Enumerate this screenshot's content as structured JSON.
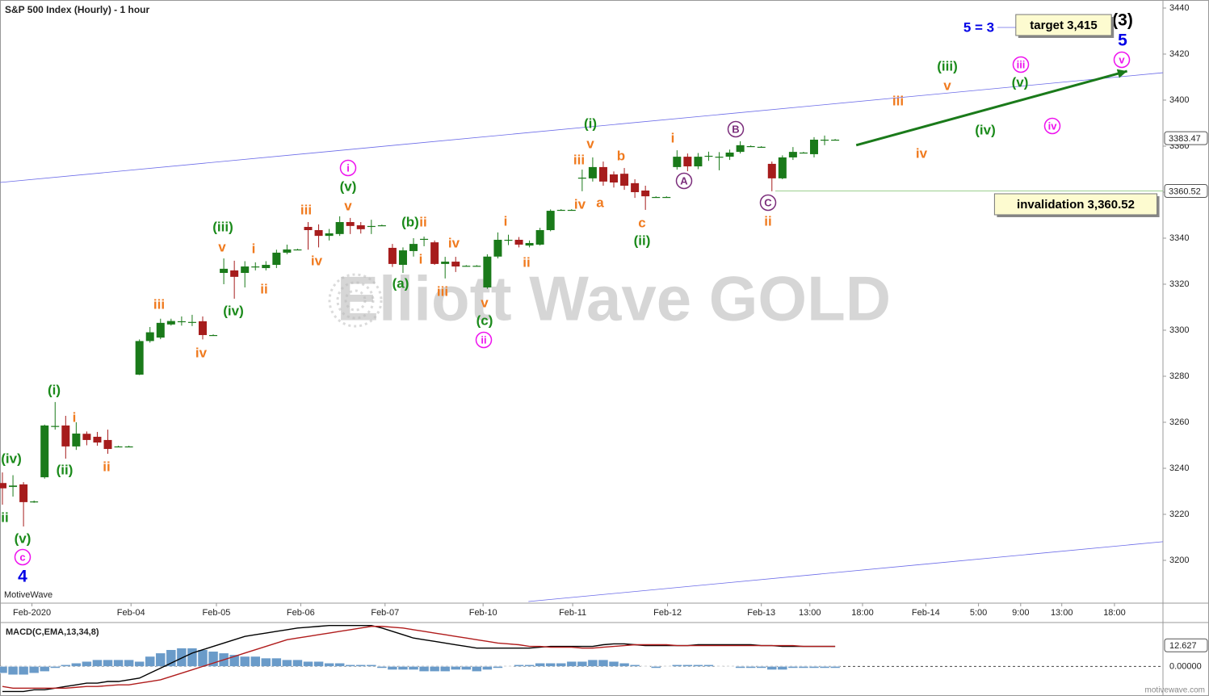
{
  "chart_data": [
    {
      "type": "candlestick",
      "title": "S&P 500 Index (Hourly) - 1 hour",
      "watermark": "Elliott Wave GOLD",
      "brand": "MotiveWave",
      "footer": "motivewave.com",
      "up_color": "#1a7a1a",
      "down_color": "#a61c1c",
      "xlim": [
        -0.23,
        110.1
      ],
      "ylim": [
        3181.4,
        3443.5
      ],
      "xticks": [
        {
          "value": 2.8,
          "label": "Feb-2020"
        },
        {
          "value": 12.2,
          "label": "Feb-04"
        },
        {
          "value": 20.3,
          "label": "Feb-05"
        },
        {
          "value": 28.3,
          "label": "Feb-06"
        },
        {
          "value": 36.3,
          "label": "Feb-07"
        },
        {
          "value": 45.6,
          "label": "Feb-10"
        },
        {
          "value": 54.1,
          "label": "Feb-11"
        },
        {
          "value": 63.1,
          "label": "Feb-12"
        },
        {
          "value": 72,
          "label": "Feb-13"
        },
        {
          "value": 76.6,
          "label": "13:00"
        },
        {
          "value": 81.6,
          "label": "18:00"
        },
        {
          "value": 87.6,
          "label": "Feb-14"
        },
        {
          "value": 92.6,
          "label": "5:00"
        },
        {
          "value": 96.6,
          "label": "9:00"
        },
        {
          "value": 100.5,
          "label": "13:00"
        },
        {
          "value": 105.5,
          "label": "18:00"
        }
      ],
      "yticks": [
        3200,
        3220,
        3240,
        3260,
        3280,
        3300,
        3320,
        3340,
        3360,
        3380,
        3400,
        3420,
        3440
      ],
      "price_markers": [
        3383.47,
        3360.52
      ],
      "x": [
        0,
        1,
        2,
        3,
        4,
        5,
        6,
        7,
        8,
        9,
        10,
        11,
        12,
        13,
        14,
        15,
        16,
        17,
        18,
        19,
        20,
        21,
        22,
        23,
        24,
        25,
        26,
        27,
        28,
        29,
        30,
        31,
        32,
        33,
        34,
        35,
        36,
        37,
        38,
        39,
        40,
        41,
        42,
        43,
        44,
        45,
        46,
        47,
        48,
        49,
        50,
        51,
        52,
        53,
        54,
        55,
        56,
        57,
        58,
        59,
        60,
        61,
        62,
        63,
        64,
        65,
        66,
        67,
        68,
        69,
        70,
        71,
        72,
        73,
        74,
        75,
        76,
        77,
        78,
        79
      ],
      "open": [
        3233.6,
        3231.9,
        3233,
        3225.6,
        3236.1,
        3258,
        3258.6,
        3249.5,
        3255,
        3253.7,
        3252.3,
        3249.5,
        3249.5,
        3280.7,
        3295.3,
        3296.8,
        3302.5,
        3303.6,
        3303.3,
        3303.9,
        3297.9,
        3324.9,
        3326,
        3324.9,
        3327.7,
        3327,
        3328.4,
        3333.7,
        3335.1,
        3344.9,
        3343.5,
        3341,
        3341.8,
        3347,
        3345.6,
        3345.3,
        3345.6,
        3335.8,
        3328.4,
        3334.4,
        3339.3,
        3338.2,
        3328.8,
        3329.8,
        3328,
        3328,
        3318.6,
        3332,
        3339.3,
        3339.3,
        3336.8,
        3337.2,
        3343.5,
        3352.3,
        3352.3,
        3366,
        3366,
        3370.9,
        3367.7,
        3368,
        3363.9,
        3360.7,
        3357.9,
        3357.9,
        3370.9,
        3375.4,
        3371.2,
        3375.8,
        3375.4,
        3375.4,
        3377.5,
        3380,
        3379.7,
        3372.3,
        3366,
        3375.1,
        3377.2,
        3376.5,
        3382.8,
        3382.8
      ],
      "high": [
        3238.2,
        3237,
        3234,
        3226,
        3259,
        3268.8,
        3262.8,
        3260,
        3256,
        3255.8,
        3256.8,
        3249.8,
        3249.8,
        3296,
        3301.4,
        3305,
        3305,
        3306,
        3306.7,
        3306,
        3298.2,
        3331.2,
        3330.2,
        3330,
        3329.5,
        3330,
        3335,
        3337.2,
        3335.4,
        3347,
        3346,
        3344,
        3349.5,
        3348.8,
        3347,
        3348,
        3345.9,
        3337.5,
        3336,
        3340,
        3340.7,
        3339,
        3331.9,
        3331.9,
        3328.3,
        3328.3,
        3333,
        3342.5,
        3341.5,
        3340.5,
        3339,
        3344.5,
        3352.5,
        3352.6,
        3352.6,
        3369.8,
        3375.1,
        3373.3,
        3369,
        3370.5,
        3365.6,
        3362.8,
        3358.2,
        3358.2,
        3378.2,
        3376.8,
        3377,
        3377.6,
        3377.4,
        3378.5,
        3382.1,
        3380.3,
        3380,
        3373.3,
        3376,
        3379.6,
        3377.5,
        3383.9,
        3384.6,
        3383.1
      ],
      "low": [
        3224.2,
        3227.7,
        3214.7,
        3225,
        3235.5,
        3256.8,
        3244.2,
        3248,
        3250,
        3249.8,
        3246.3,
        3249.2,
        3249.2,
        3280.5,
        3294.6,
        3296.1,
        3302,
        3302,
        3301.8,
        3296,
        3297.6,
        3320,
        3313.7,
        3318.6,
        3326,
        3326,
        3327,
        3333,
        3334.8,
        3335,
        3336,
        3339,
        3341,
        3341.8,
        3342,
        3341.8,
        3345.3,
        3327.5,
        3324.9,
        3332,
        3336.5,
        3328.4,
        3322.5,
        3325.3,
        3327.7,
        3327.7,
        3318,
        3331.2,
        3337,
        3336,
        3336,
        3336.8,
        3343,
        3352,
        3352,
        3360.4,
        3364.6,
        3362.8,
        3362,
        3361,
        3357.5,
        3352.3,
        3357.6,
        3357.6,
        3369.8,
        3369.1,
        3370,
        3373.6,
        3369.5,
        3374,
        3376.8,
        3379.7,
        3379.4,
        3360.4,
        3365.6,
        3374,
        3376.9,
        3375.1,
        3380.4,
        3382.5
      ],
      "close": [
        3231.3,
        3232.5,
        3225.3,
        3225.6,
        3258.6,
        3258.4,
        3249.5,
        3255.1,
        3252.3,
        3251.2,
        3248.4,
        3249.5,
        3249.5,
        3295.3,
        3299.1,
        3303.2,
        3304,
        3303.9,
        3303.6,
        3297.9,
        3297.9,
        3326.7,
        3323.2,
        3327.7,
        3327.7,
        3328.4,
        3333.7,
        3335.1,
        3335.1,
        3343.5,
        3341,
        3342.1,
        3347,
        3345.3,
        3343.9,
        3345.3,
        3345.6,
        3328.8,
        3334.7,
        3337.5,
        3339.7,
        3328.8,
        3329.8,
        3327.7,
        3328,
        3328,
        3332,
        3339.3,
        3339.3,
        3337.2,
        3337.9,
        3343.5,
        3351.9,
        3352.3,
        3352.3,
        3366.3,
        3370.9,
        3364.6,
        3364.2,
        3362.8,
        3360,
        3358.2,
        3357.9,
        3357.9,
        3375.4,
        3371.2,
        3375.4,
        3375.8,
        3375.4,
        3377.2,
        3380.4,
        3380,
        3379.7,
        3366,
        3375.1,
        3377.5,
        3377.2,
        3382.8,
        3382.8,
        3382.8
      ],
      "channel_lines": [
        {
          "x": [
            -0.23,
            110.1
          ],
          "values": [
            3364.2,
            3411.9
          ]
        },
        {
          "x": [
            49.9,
            110.1
          ],
          "values": [
            3182.1,
            3208.1
          ]
        }
      ],
      "arrow": {
        "x": [
          81,
          106.7
        ],
        "values": [
          3380.4,
          3412.6
        ],
        "color": "#1a7a1a"
      },
      "annotations": [
        {
          "text": "(iv)",
          "color": "#1a8a1a"
        },
        {
          "text": "ii",
          "color": "#1a8a1a"
        },
        {
          "text": "(v)",
          "color": "#1a8a1a"
        },
        {
          "text": "c",
          "color": "#ee11ee",
          "circled": true
        },
        {
          "text": "4",
          "color": "#0000e6",
          "big": true
        },
        {
          "text": "(i)",
          "color": "#1a8a1a"
        },
        {
          "text": "i",
          "color": "#f07a1e"
        },
        {
          "text": "(ii)",
          "color": "#1a8a1a"
        },
        {
          "text": "ii",
          "color": "#f07a1e"
        },
        {
          "text": "iii",
          "color": "#f07a1e"
        },
        {
          "text": "iv",
          "color": "#f07a1e"
        },
        {
          "text": "(iii)",
          "color": "#1a8a1a"
        },
        {
          "text": "v",
          "color": "#f07a1e"
        },
        {
          "text": "i",
          "color": "#f07a1e"
        },
        {
          "text": "ii",
          "color": "#f07a1e"
        },
        {
          "text": "(iv)",
          "color": "#1a8a1a"
        },
        {
          "text": "iii",
          "color": "#f07a1e"
        },
        {
          "text": "iv",
          "color": "#f07a1e"
        },
        {
          "text": "i",
          "color": "#ee11ee",
          "circled": true
        },
        {
          "text": "(v)",
          "color": "#1a8a1a"
        },
        {
          "text": "v",
          "color": "#f07a1e"
        },
        {
          "text": "(b)",
          "color": "#1a8a1a"
        },
        {
          "text": "ii",
          "color": "#f07a1e"
        },
        {
          "text": "i",
          "color": "#f07a1e"
        },
        {
          "text": "(a)",
          "color": "#1a8a1a"
        },
        {
          "text": "iv",
          "color": "#f07a1e"
        },
        {
          "text": "iii",
          "color": "#f07a1e"
        },
        {
          "text": "v",
          "color": "#f07a1e"
        },
        {
          "text": "(c)",
          "color": "#1a8a1a"
        },
        {
          "text": "ii",
          "color": "#ee11ee",
          "circled": true
        },
        {
          "text": "i",
          "color": "#f07a1e"
        },
        {
          "text": "ii",
          "color": "#f07a1e"
        },
        {
          "text": "(i)",
          "color": "#1a8a1a"
        },
        {
          "text": "v",
          "color": "#f07a1e"
        },
        {
          "text": "iii",
          "color": "#f07a1e"
        },
        {
          "text": "iv",
          "color": "#f07a1e"
        },
        {
          "text": "a",
          "color": "#f07a1e"
        },
        {
          "text": "b",
          "color": "#f07a1e"
        },
        {
          "text": "c",
          "color": "#f07a1e"
        },
        {
          "text": "(ii)",
          "color": "#1a8a1a"
        },
        {
          "text": "i",
          "color": "#f07a1e"
        },
        {
          "text": "A",
          "color": "#7b2d7b",
          "circled": true
        },
        {
          "text": "B",
          "color": "#7b2d7b",
          "circled": true
        },
        {
          "text": "C",
          "color": "#7b2d7b",
          "circled": true
        },
        {
          "text": "ii",
          "color": "#f07a1e"
        },
        {
          "text": "iii",
          "color": "#f07a1e"
        },
        {
          "text": "iv",
          "color": "#f07a1e"
        },
        {
          "text": "(iii)",
          "color": "#1a8a1a"
        },
        {
          "text": "v",
          "color": "#f07a1e"
        },
        {
          "text": "(iv)",
          "color": "#1a8a1a"
        },
        {
          "text": "(v)",
          "color": "#1a8a1a"
        },
        {
          "text": "iii",
          "color": "#ee11ee",
          "circled": true
        },
        {
          "text": "iv",
          "color": "#ee11ee",
          "circled": true
        },
        {
          "text": "v",
          "color": "#ee11ee",
          "circled": true
        },
        {
          "text": "5",
          "color": "#0000e6",
          "big": true
        },
        {
          "text": "(3)",
          "color": "#000000",
          "big": true
        },
        {
          "text": "5 = 3",
          "color": "#0000e6"
        },
        {
          "text": "target 3,415",
          "color": "#000000",
          "boxed": true
        },
        {
          "text": "invalidation 3,360.52",
          "color": "#000000",
          "boxed": true
        }
      ]
    },
    {
      "type": "macd",
      "title": "MACD(C,EMA,13,34,8)",
      "ylim": [
        -17.7,
        26.3
      ],
      "yticks": [
        {
          "value": 0,
          "label": "0.00000"
        }
      ],
      "price_markers": [
        12.627
      ],
      "series": [
        {
          "kind": "bar",
          "color": "#6a9bc9",
          "values": [
            -4,
            -5,
            -5,
            -4,
            -3,
            -1,
            1,
            2,
            3,
            4,
            4,
            4,
            4,
            3,
            6,
            8,
            10,
            11,
            11,
            10,
            9,
            8,
            7,
            6,
            6,
            5,
            5,
            4,
            4,
            3,
            3,
            2,
            2,
            1,
            1,
            1,
            -1,
            -2,
            -2,
            -2,
            -3,
            -3,
            -3,
            -2,
            -2,
            -3,
            -2,
            -1,
            0,
            1,
            1,
            2,
            2,
            2,
            3,
            3,
            4,
            4,
            3,
            2,
            1,
            0,
            -1,
            0,
            1,
            1,
            1,
            1,
            0,
            0,
            -1,
            -1,
            -1,
            -2,
            -2,
            -1,
            -1,
            -1,
            -1,
            -1
          ]
        },
        {
          "kind": "line",
          "color": "#000000",
          "values": [
            -15,
            -15,
            -15,
            -14,
            -14,
            -13,
            -12,
            -11,
            -10,
            -10,
            -9,
            -9,
            -8,
            -7,
            -4,
            -1,
            2,
            5,
            8,
            10,
            12,
            14,
            16,
            18,
            19,
            20,
            21,
            22,
            23,
            23.5,
            24,
            24.5,
            24.5,
            24.5,
            24.5,
            24.5,
            23,
            21,
            19,
            17,
            16,
            15,
            14,
            13,
            12,
            11,
            11,
            11,
            11,
            11,
            11,
            11.5,
            12,
            12,
            12,
            12,
            12,
            13,
            13.5,
            13.5,
            13,
            12.5,
            12.5,
            12.5,
            12.5,
            12.5,
            13,
            13,
            13,
            13,
            13,
            13,
            12.5,
            12.5,
            12,
            12,
            12,
            12,
            12,
            12
          ]
        },
        {
          "kind": "line",
          "color": "#b01c1c",
          "values": [
            -12,
            -13,
            -13,
            -13,
            -13,
            -13,
            -13,
            -12.5,
            -12,
            -12,
            -11.5,
            -11,
            -11,
            -10,
            -9,
            -8,
            -6,
            -4,
            -2,
            0,
            2,
            4,
            6,
            8,
            10,
            12,
            14,
            16,
            17,
            18,
            19,
            20,
            21,
            22,
            23,
            24,
            24,
            23.5,
            23,
            22,
            21,
            20,
            19,
            18,
            17,
            16,
            15,
            14,
            13.5,
            13,
            12,
            12,
            11.5,
            11.5,
            11.5,
            11,
            11,
            11.5,
            12,
            12.5,
            13,
            13,
            13,
            13,
            12.5,
            12.5,
            12.5,
            12.5,
            12.5,
            12.5,
            12.5,
            12.5,
            12.5,
            12.5,
            12.5,
            12.5,
            12,
            12,
            12,
            12
          ]
        }
      ]
    }
  ]
}
